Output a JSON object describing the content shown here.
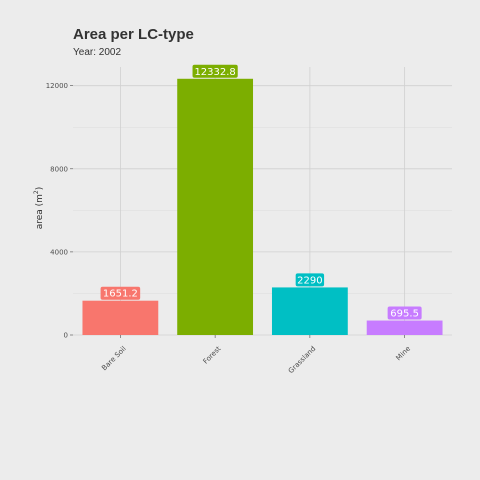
{
  "title": "Area per LC-type",
  "subtitle": "Year: 2002",
  "chart_data": {
    "type": "bar",
    "title": "Area per LC-type",
    "subtitle": "Year: 2002",
    "categories": [
      "Bare Soil",
      "Forest",
      "Grassland",
      "Mine"
    ],
    "values": [
      1651.2,
      12332.8,
      2290,
      695.5
    ],
    "data_labels": [
      "1651.2",
      "12332.8",
      "2290",
      "695.5"
    ],
    "colors": [
      "#F8766D",
      "#7CAE00",
      "#00BFC4",
      "#C77CFF"
    ],
    "xlabel": "",
    "ylabel": "area (m",
    "ylabel_sup": "2",
    "ylabel_close": ")",
    "ylim": [
      0,
      12500
    ],
    "yticks": [
      0,
      4000,
      8000,
      12000
    ],
    "ytick_labels": [
      "0",
      "4000",
      "8000",
      "12000"
    ],
    "grid": true,
    "legend": "none"
  }
}
